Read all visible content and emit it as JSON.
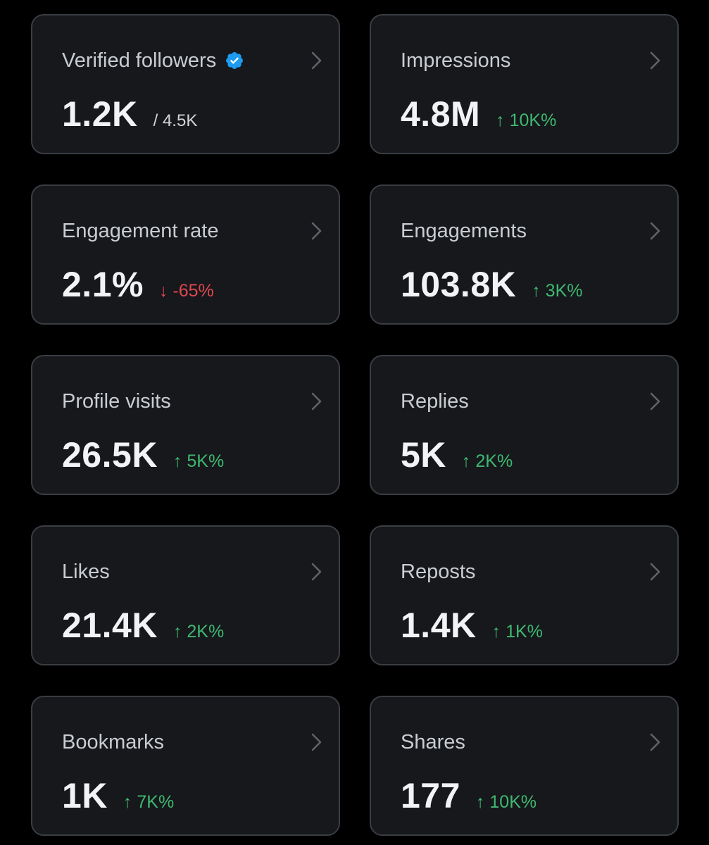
{
  "colors": {
    "background": "#000000",
    "card_background": "#16181c",
    "card_border": "#3a3d42",
    "positive": "#3fb870",
    "negative": "#e0474f",
    "verified_badge": "#1d9bf0"
  },
  "cards": [
    {
      "title": "Verified followers",
      "value": "1.2K",
      "sub": "/ 4.5K",
      "icon": "verified-badge-icon"
    },
    {
      "title": "Impressions",
      "value": "4.8M",
      "delta": "↑ 10K%",
      "trend": "up"
    },
    {
      "title": "Engagement rate",
      "value": "2.1%",
      "delta": "↓ -65%",
      "trend": "down"
    },
    {
      "title": "Engagements",
      "value": "103.8K",
      "delta": "↑ 3K%",
      "trend": "up"
    },
    {
      "title": "Profile visits",
      "value": "26.5K",
      "delta": "↑ 5K%",
      "trend": "up"
    },
    {
      "title": "Replies",
      "value": "5K",
      "delta": "↑ 2K%",
      "trend": "up"
    },
    {
      "title": "Likes",
      "value": "21.4K",
      "delta": "↑ 2K%",
      "trend": "up"
    },
    {
      "title": "Reposts",
      "value": "1.4K",
      "delta": "↑ 1K%",
      "trend": "up"
    },
    {
      "title": "Bookmarks",
      "value": "1K",
      "delta": "↑ 7K%",
      "trend": "up"
    },
    {
      "title": "Shares",
      "value": "177",
      "delta": "↑ 10K%",
      "trend": "up"
    }
  ]
}
